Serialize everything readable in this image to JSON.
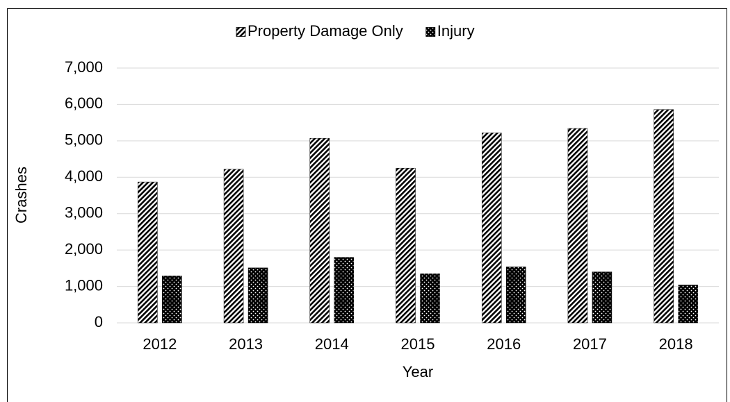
{
  "chart_data": {
    "type": "bar",
    "x_label": "Year",
    "y_label": "Crashes",
    "categories": [
      "2012",
      "2013",
      "2014",
      "2015",
      "2016",
      "2017",
      "2018"
    ],
    "series": [
      {
        "name": "Property Damage Only",
        "color": "#000000",
        "pattern": "diagonal-hatch",
        "values": [
          3870,
          4220,
          5070,
          4250,
          5220,
          5340,
          5860
        ]
      },
      {
        "name": "Injury",
        "color": "#000000",
        "pattern": "dots",
        "values": [
          1290,
          1510,
          1800,
          1350,
          1540,
          1400,
          1040
        ]
      }
    ],
    "ylim": [
      0,
      7000
    ],
    "yticks": [
      0,
      {
        "value": 1000,
        "label": "1,000"
      },
      {
        "value": 2000,
        "label": "2,000"
      },
      {
        "value": 3000,
        "label": "3,000"
      },
      {
        "value": 4000,
        "label": "4,000"
      },
      {
        "value": 5000,
        "label": "5,000"
      },
      {
        "value": 6000,
        "label": "6,000"
      },
      {
        "value": 7000,
        "label": "7,000"
      }
    ],
    "grid": true,
    "legend": "top"
  }
}
